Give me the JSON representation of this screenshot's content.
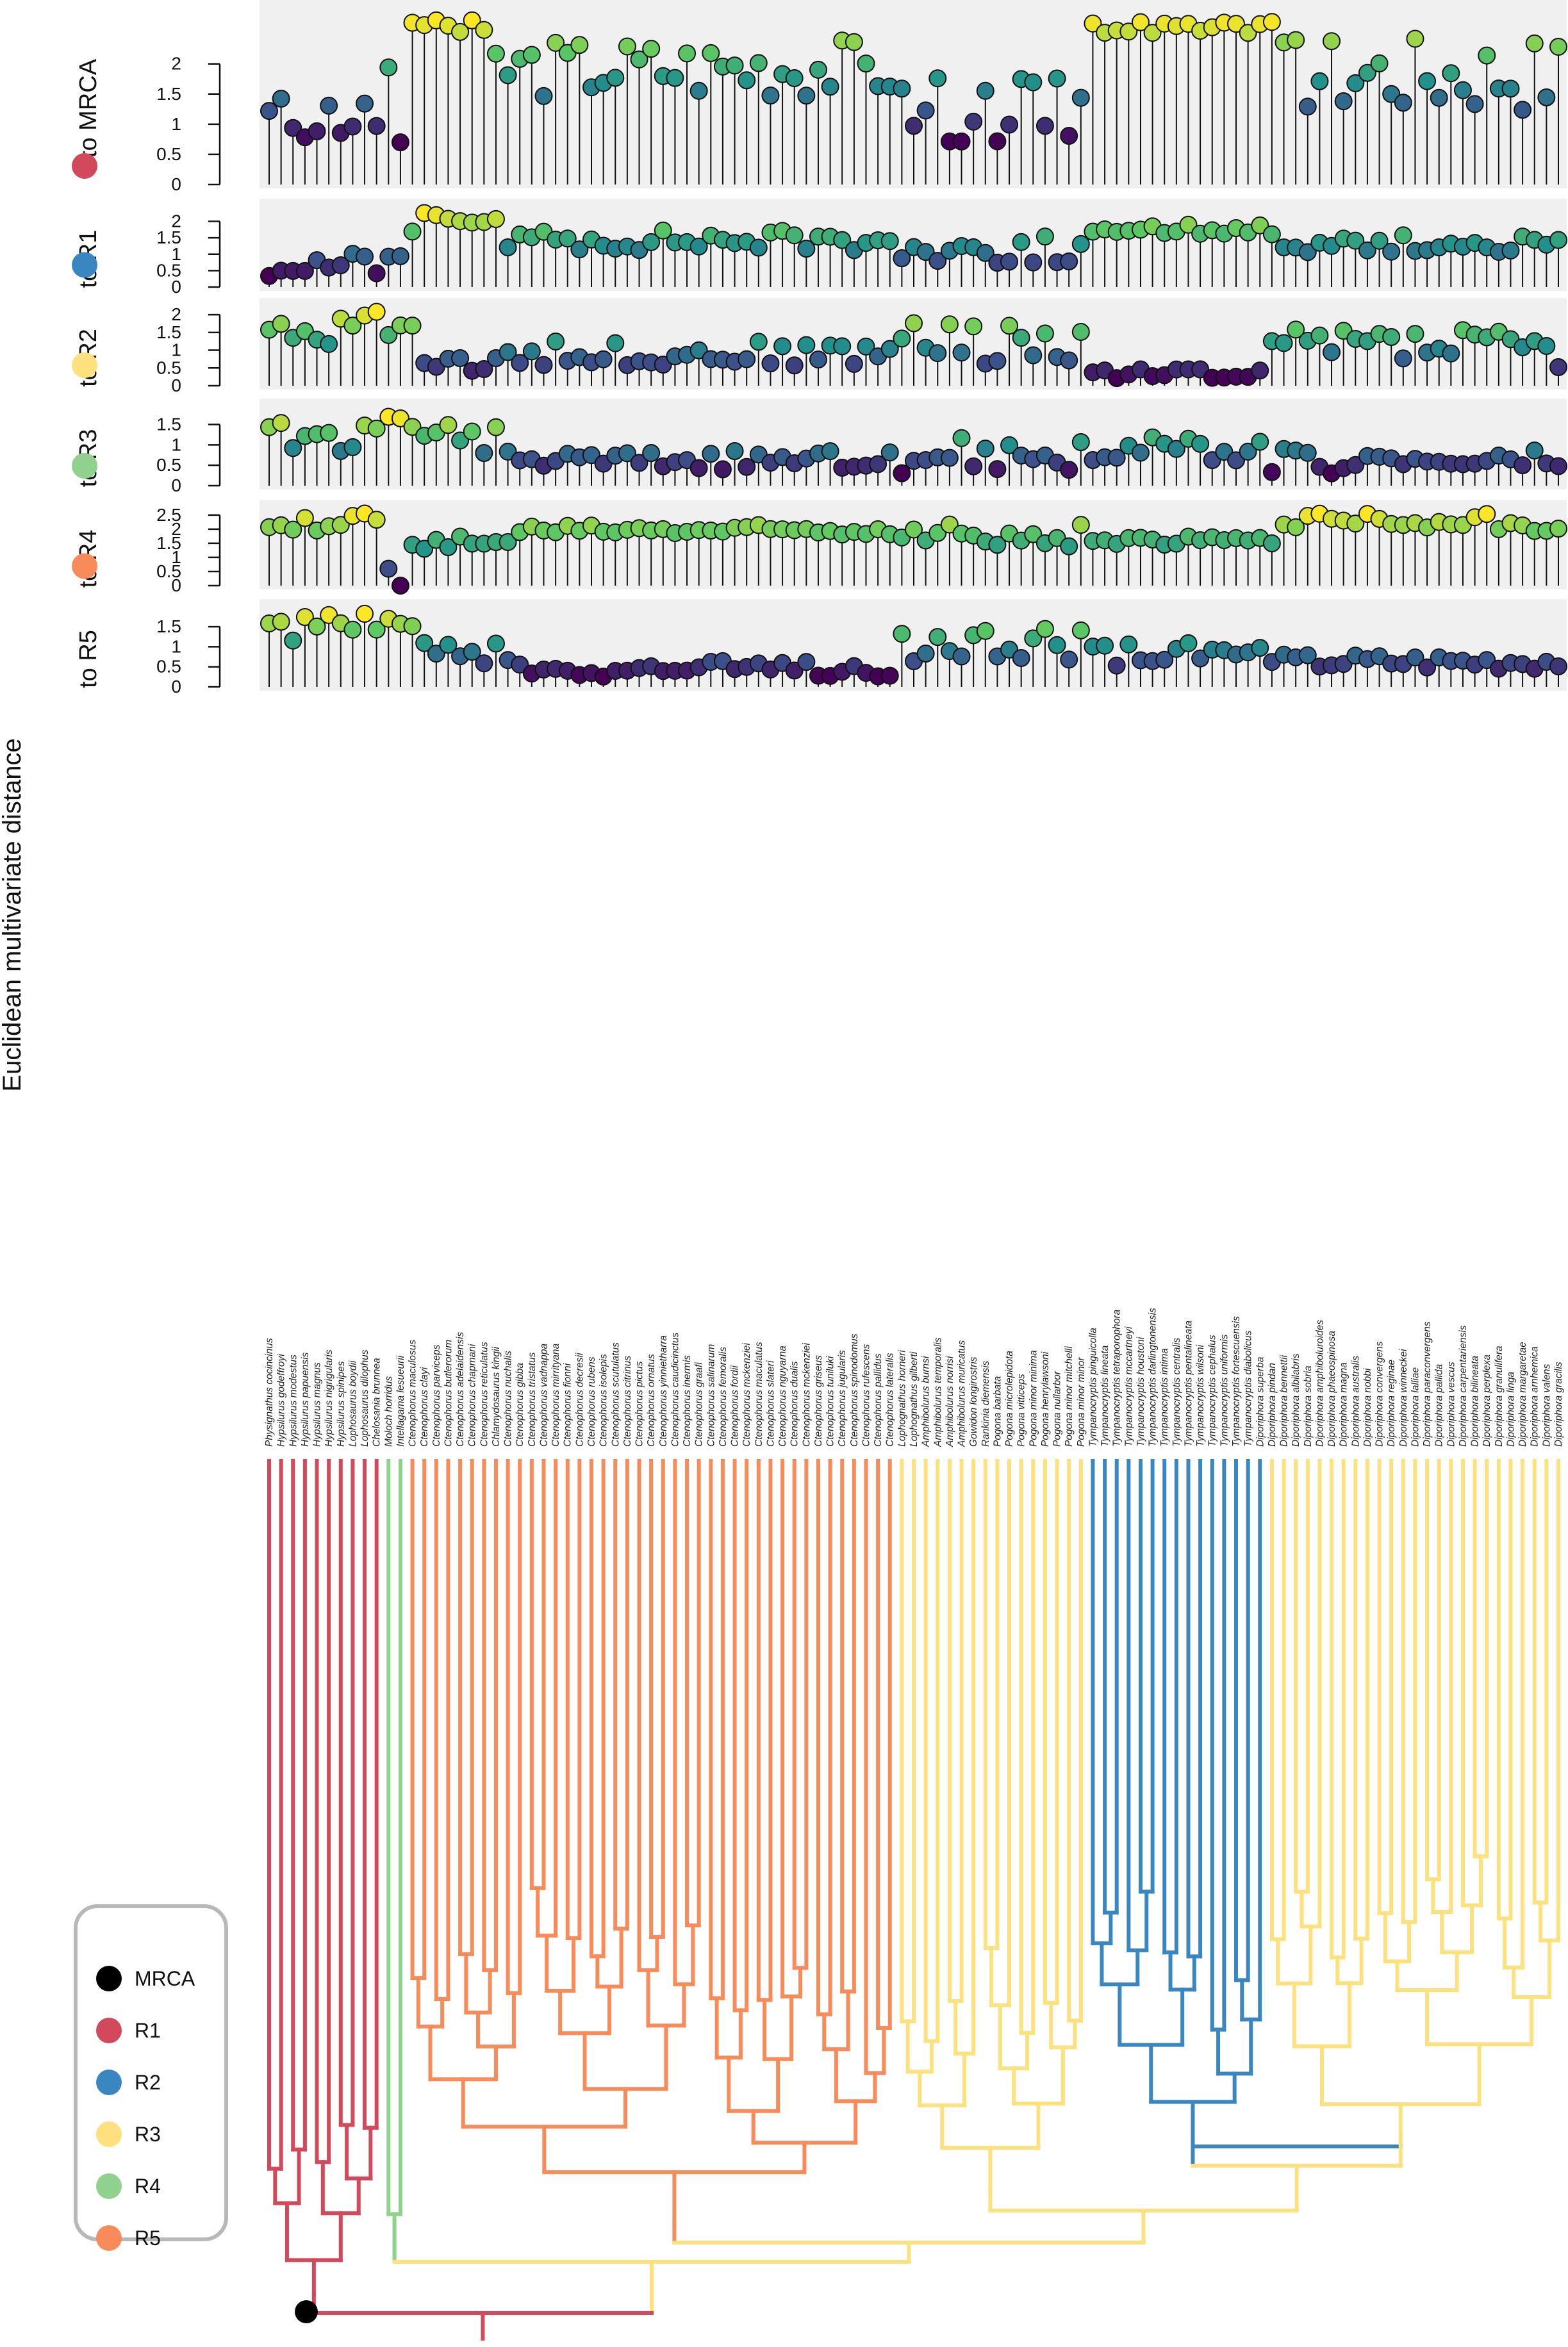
{
  "chart_data": {
    "type": "lollipop",
    "ylabel": "Euclidean multivariate distance",
    "grid": false,
    "legend": {
      "placement": "bottom-left",
      "entries": [
        {
          "label": "MRCA",
          "color": "#000000"
        },
        {
          "label": "R1",
          "color": "#d1495b"
        },
        {
          "label": "R2",
          "color": "#3a86c0"
        },
        {
          "label": "R3",
          "color": "#fce17e"
        },
        {
          "label": "R4",
          "color": "#90d18d"
        },
        {
          "label": "R5",
          "color": "#f78c5a"
        }
      ]
    },
    "taxa": [
      "Physignathus cocincinus",
      "Hypsilurus godeffroyi",
      "Hypsilurus modestus",
      "Hypsilurus papuensis",
      "Hypsilurus magnus",
      "Hypsilurus nigrigularis",
      "Hypsilurus spinipes",
      "Lophosaurus boydii",
      "Lophosaurus dilophus",
      "Chelosania brunnea",
      "Moloch horridus",
      "Intellagama lesueurii",
      "Ctenophorus maculosus",
      "Ctenophorus clayi",
      "Ctenophorus parviceps",
      "Ctenophorus butlerorum",
      "Ctenophorus adelaidensis",
      "Ctenophorus chapmani",
      "Ctenophorus reticulatus",
      "Chlamydosaurus kingii",
      "Ctenophorus nuchalis",
      "Ctenophorus gibba",
      "Ctenophorus tristatus",
      "Ctenophorus vadnappa",
      "Ctenophorus mirrityana",
      "Ctenophorus fionni",
      "Ctenophorus decresii",
      "Ctenophorus rubens",
      "Ctenophorus isolepis",
      "Ctenophorus scutulatus",
      "Ctenophorus citrinus",
      "Ctenophorus pictus",
      "Ctenophorus ornatus",
      "Ctenophorus yinnietharra",
      "Ctenophorus caudicinctus",
      "Ctenophorus inermis",
      "Ctenophorus graafi",
      "Ctenophorus salinarum",
      "Ctenophorus femoralis",
      "Ctenophorus fordii",
      "Ctenophorus mckenziei",
      "Ctenophorus maculatus",
      "Ctenophorus slateri",
      "Ctenophorus nguyarna",
      "Ctenophorus dualis",
      "Ctenophorus mckenziei",
      "Ctenophorus griseus",
      "Ctenophorus tuniluki",
      "Ctenophorus jugularis",
      "Ctenophorus spinodomus",
      "Ctenophorus rufescens",
      "Ctenophorus pallidus",
      "Ctenophorus lateralis",
      "Lophognathus horneri",
      "Lophognathus gilberti",
      "Amphibolurus burnsi",
      "Amphibolurus temporalis",
      "Amphibolurus norrisi",
      "Amphibolurus muricatus",
      "Gowidon longirostris",
      "Rankinia diemensis",
      "Pogona barbata",
      "Pogona microlepidota",
      "Pogona vitticeps",
      "Pogona minor minima",
      "Pogona henrylawsoni",
      "Pogona nullarbor",
      "Pogona minor mitchelli",
      "Pogona minor minor",
      "Tympanocryptis pinguicolla",
      "Tympanocryptis lineata",
      "Tympanocryptis tetraporophora",
      "Tympanocryptis mccartneyi",
      "Tympanocryptis houstoni",
      "Tympanocryptis darlingtonensis",
      "Tympanocryptis intima",
      "Tympanocryptis centralis",
      "Tympanocryptis pentalineata",
      "Tympanocryptis wilsoni",
      "Tympanocryptis cephalus",
      "Tympanocryptis uniformis",
      "Tympanocryptis fortescuensis",
      "Tympanocryptis diabolicus",
      "Diporiphora superba",
      "Diporiphora pindan",
      "Diporiphora bennettii",
      "Diporiphora albilabris",
      "Diporiphora sobria",
      "Diporiphora amphiboluroides",
      "Diporiphora phaeospinosa",
      "Diporiphora magna",
      "Diporiphora australis",
      "Diporiphora nobbi",
      "Diporiphora convergens",
      "Diporiphora reginae",
      "Diporiphora winneckei",
      "Diporiphora lalliae",
      "Diporiphora paraconvergens",
      "Diporiphora pallida",
      "Diporiphora vescus",
      "Diporiphora carpentariensis",
      "Diporiphora bilineata",
      "Diporiphora perplexa",
      "Diporiphora granulifera",
      "Diporiphora linga",
      "Diporiphora margaretae",
      "Diporiphora arnhemica",
      "Diporiphora valens",
      "Diporiphora gracilis"
    ],
    "series": [
      {
        "name": "to MRCA",
        "legend_color": "#000000",
        "ylim": [
          0,
          2.9
        ],
        "ticks": [
          0,
          0.5,
          1,
          1.5,
          2
        ]
      },
      {
        "name": "to R1",
        "legend_color": "#d1495b",
        "ylim": [
          0,
          2.4
        ],
        "ticks": [
          0,
          0.5,
          1,
          1.5,
          2
        ]
      },
      {
        "name": "to R2",
        "legend_color": "#3a86c0",
        "ylim": [
          0,
          2.2
        ],
        "ticks": [
          0,
          0.5,
          1,
          1.5,
          2
        ]
      },
      {
        "name": "to R3",
        "legend_color": "#fce17e",
        "ylim": [
          0,
          1.9
        ],
        "ticks": [
          0,
          0.5,
          1,
          1.5
        ]
      },
      {
        "name": "to R4",
        "legend_color": "#90d18d",
        "ylim": [
          0,
          2.7
        ],
        "ticks": [
          0,
          0.5,
          1,
          1.5,
          2,
          2.5
        ]
      },
      {
        "name": "to R5",
        "legend_color": "#f78c5a",
        "ylim": [
          0,
          1.95
        ],
        "ticks": [
          0,
          0.5,
          1,
          1.5
        ]
      }
    ],
    "tree": {
      "root_node": "MRCA",
      "clades": [
        "R1",
        "R4",
        "R5",
        "R3",
        "R2",
        "R3"
      ]
    }
  }
}
